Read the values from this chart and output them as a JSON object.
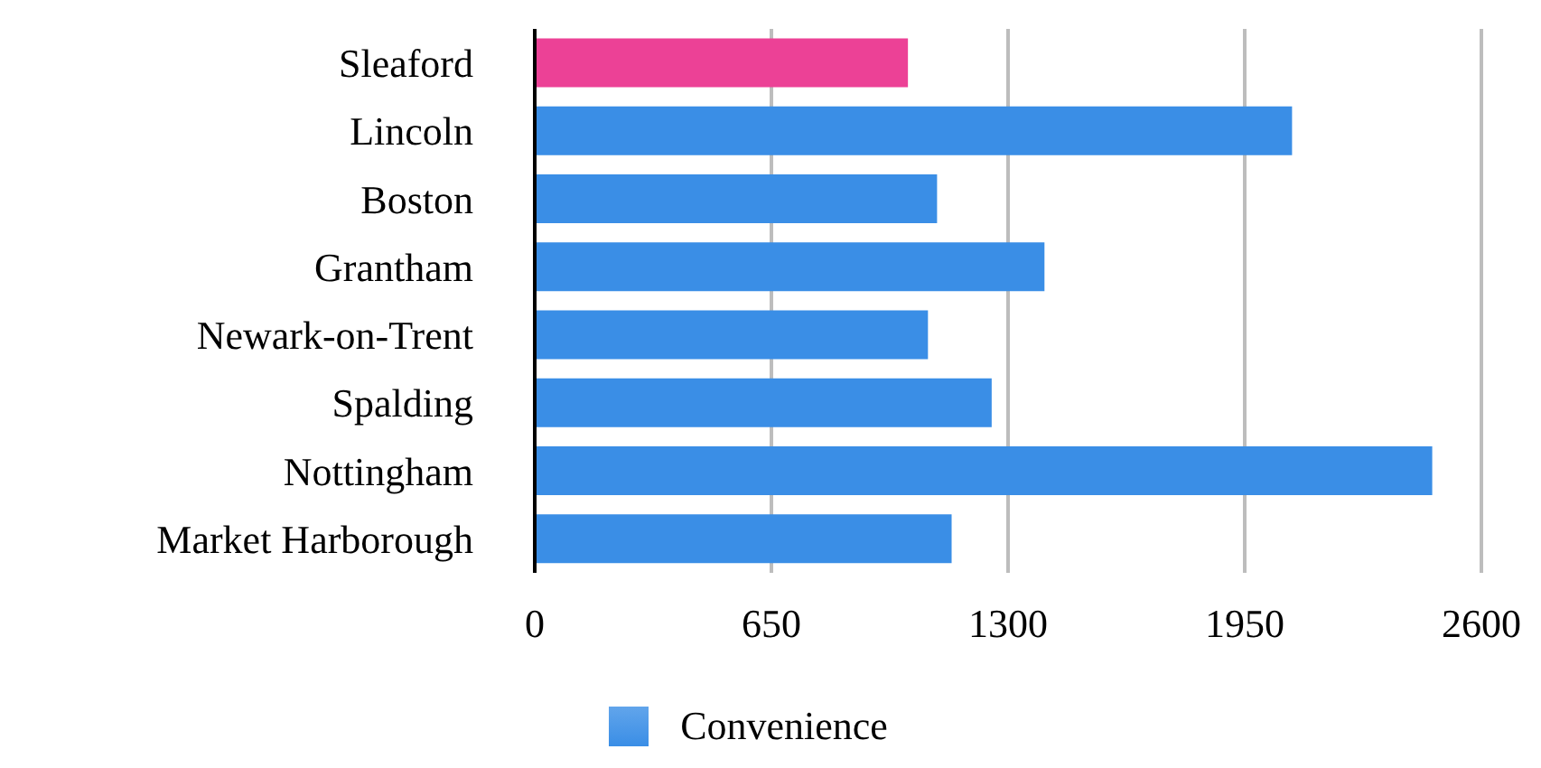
{
  "chart_data": {
    "type": "bar",
    "orientation": "horizontal",
    "categories": [
      "Sleaford",
      "Lincoln",
      "Boston",
      "Grantham",
      "Newark-on-Trent",
      "Spalding",
      "Nottingham",
      "Market Harborough"
    ],
    "series": [
      {
        "name": "Convenience",
        "colors": [
          "#ec4196",
          "#3a8ee6",
          "#3a8ee6",
          "#3a8ee6",
          "#3a8ee6",
          "#3a8ee6",
          "#3a8ee6",
          "#3a8ee6"
        ],
        "values": [
          1025,
          2080,
          1105,
          1400,
          1080,
          1255,
          2465,
          1145
        ]
      }
    ],
    "xlim": [
      0,
      2600
    ],
    "xticks": [
      0,
      650,
      1300,
      1950,
      2600
    ],
    "grid": "x",
    "legend": "bottom"
  }
}
